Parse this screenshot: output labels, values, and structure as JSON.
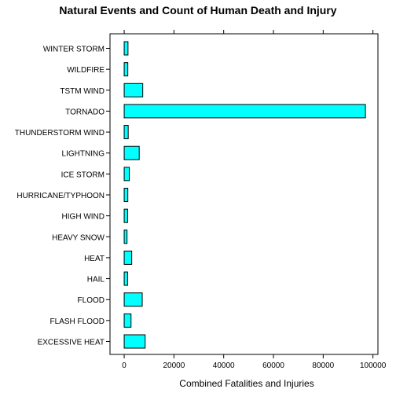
{
  "chart_data": {
    "type": "bar",
    "orientation": "horizontal",
    "title": "Natural Events and Count of Human Death and Injury",
    "xlabel": "Combined Fatalities and Injuries",
    "ylabel": "",
    "categories": [
      "WINTER STORM",
      "WILDFIRE",
      "TSTM WIND",
      "TORNADO",
      "THUNDERSTORM WIND",
      "LIGHTNING",
      "ICE STORM",
      "HURRICANE/TYPHOON",
      "HIGH WIND",
      "HEAVY SNOW",
      "HEAT",
      "HAIL",
      "FLOOD",
      "FLASH FLOOD",
      "EXCESSIVE HEAT"
    ],
    "values": [
      1527,
      1458,
      7461,
      96979,
      1621,
      6046,
      2064,
      1463,
      1385,
      1148,
      3037,
      1376,
      7259,
      2755,
      8428
    ],
    "xlim": [
      -5700,
      102000
    ],
    "xticks": [
      0,
      20000,
      40000,
      60000,
      80000,
      100000
    ],
    "xtick_labels": [
      "0",
      "20000",
      "40000",
      "60000",
      "80000",
      "100000"
    ],
    "bar_color": "#00ffff",
    "bar_edge_color": "#000000",
    "grid": false,
    "legend": "none"
  }
}
